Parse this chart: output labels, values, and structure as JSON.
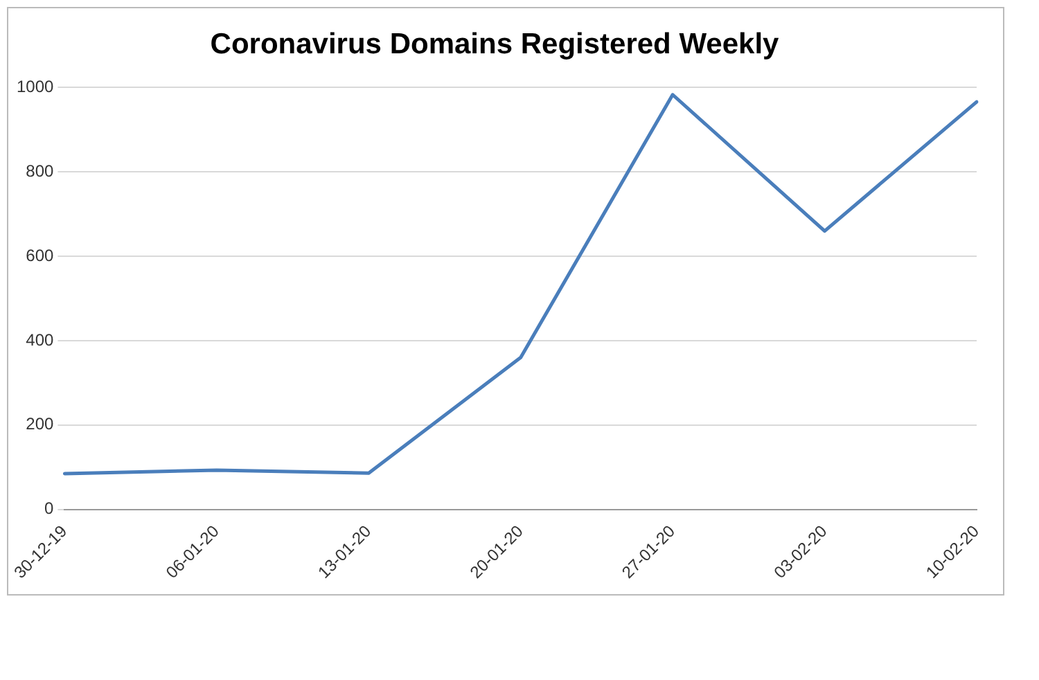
{
  "chart_data": {
    "type": "line",
    "title": "Coronavirus Domains Registered Weekly",
    "categories": [
      "30-12-19",
      "06-01-20",
      "13-01-20",
      "20-01-20",
      "27-01-20",
      "03-02-20",
      "10-02-20"
    ],
    "series": [
      {
        "color": "#4a7ebb",
        "values": [
          85,
          93,
          86,
          360,
          983,
          660,
          966
        ]
      }
    ],
    "ylim": [
      0,
      1000
    ],
    "yticks": [
      0,
      200,
      400,
      600,
      800,
      1000
    ],
    "grid": "y",
    "legend": false,
    "marker": "none",
    "line_style": "solid"
  }
}
